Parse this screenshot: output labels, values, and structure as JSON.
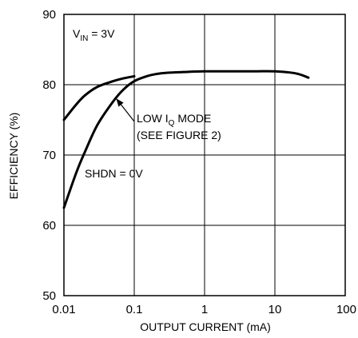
{
  "chart_data": {
    "type": "line",
    "xscale": "log",
    "xlim": [
      0.01,
      100
    ],
    "ylim": [
      50,
      90
    ],
    "grid": true,
    "xlabel": "OUTPUT CURRENT (mA)",
    "ylabel": "EFFICIENCY (%)",
    "x_ticks": [
      {
        "value": 0.01,
        "label": "0.01"
      },
      {
        "value": 0.1,
        "label": "0.1"
      },
      {
        "value": 1,
        "label": "1"
      },
      {
        "value": 10,
        "label": "10"
      },
      {
        "value": 100,
        "label": "100"
      }
    ],
    "y_ticks": [
      {
        "value": 50,
        "label": "50"
      },
      {
        "value": 60,
        "label": "60"
      },
      {
        "value": 70,
        "label": "70"
      },
      {
        "value": 80,
        "label": "80"
      },
      {
        "value": 90,
        "label": "90"
      }
    ],
    "series": [
      {
        "x": [
          0.01,
          0.015,
          0.02,
          0.03,
          0.05,
          0.07,
          0.1
        ],
        "y": [
          75,
          77.2,
          78.5,
          79.7,
          80.5,
          80.9,
          81.2
        ]
      },
      {
        "x": [
          0.01,
          0.015,
          0.02,
          0.03,
          0.05,
          0.07,
          0.1,
          0.15,
          0.2,
          0.3,
          0.5,
          1,
          2,
          5,
          10,
          20,
          30
        ],
        "y": [
          62.5,
          67.5,
          70.5,
          74.3,
          77.6,
          79.3,
          80.5,
          81.2,
          81.5,
          81.7,
          81.8,
          81.9,
          81.9,
          81.9,
          81.9,
          81.6,
          81.0
        ]
      }
    ],
    "annotations": {
      "vin": {
        "main": "V",
        "sub": "IN",
        "rest": " = 3V"
      },
      "lowiq": {
        "line1_main": "LOW I",
        "line1_sub": "Q",
        "line1_rest": " MODE",
        "line2": "(SEE FIGURE 2)"
      },
      "shdn": "SHDN = 0V"
    }
  }
}
